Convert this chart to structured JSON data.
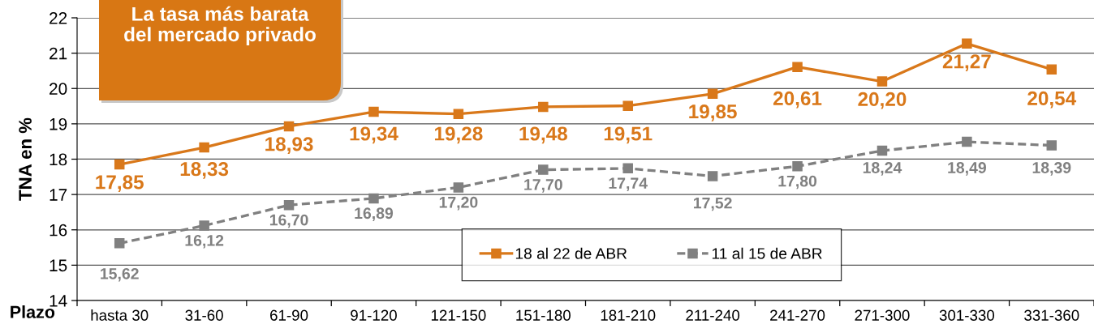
{
  "chart_data": {
    "type": "line",
    "annotations": [
      "La tasa más barata\ndel mercado privado"
    ],
    "xlabel": "Plazo",
    "ylabel": "TNA en %",
    "categories": [
      "hasta 30",
      "31-60",
      "61-90",
      "91-120",
      "121-150",
      "151-180",
      "181-210",
      "211-240",
      "241-270",
      "271-300",
      "301-330",
      "331-360"
    ],
    "series": [
      {
        "name": "18 al 22 de ABR",
        "color": "#d9781a",
        "line_style": "solid",
        "values": [
          17.85,
          18.33,
          18.93,
          19.34,
          19.28,
          19.48,
          19.51,
          19.85,
          20.61,
          20.2,
          21.27,
          20.54
        ],
        "value_labels": [
          "17,85",
          "18,33",
          "18,93",
          "19,34",
          "19,28",
          "19,48",
          "19,51",
          "19,85",
          "20,61",
          "20,20",
          "21,27",
          "20,54"
        ]
      },
      {
        "name": "11 al 15 de ABR",
        "color": "#808080",
        "line_style": "dashed",
        "values": [
          15.62,
          16.12,
          16.7,
          16.89,
          17.2,
          17.7,
          17.74,
          17.52,
          17.8,
          18.24,
          18.49,
          18.39
        ],
        "value_labels": [
          "15,62",
          "16,12",
          "16,70",
          "16,89",
          "17,20",
          "17,70",
          "17,74",
          "17,52",
          "17,80",
          "18,24",
          "18,49",
          "18,39"
        ]
      }
    ],
    "ylim": [
      14,
      22
    ],
    "yticks": [
      14,
      15,
      16,
      17,
      18,
      19,
      20,
      21,
      22
    ],
    "grid": "y",
    "legend": "bottom",
    "marker": "square"
  }
}
